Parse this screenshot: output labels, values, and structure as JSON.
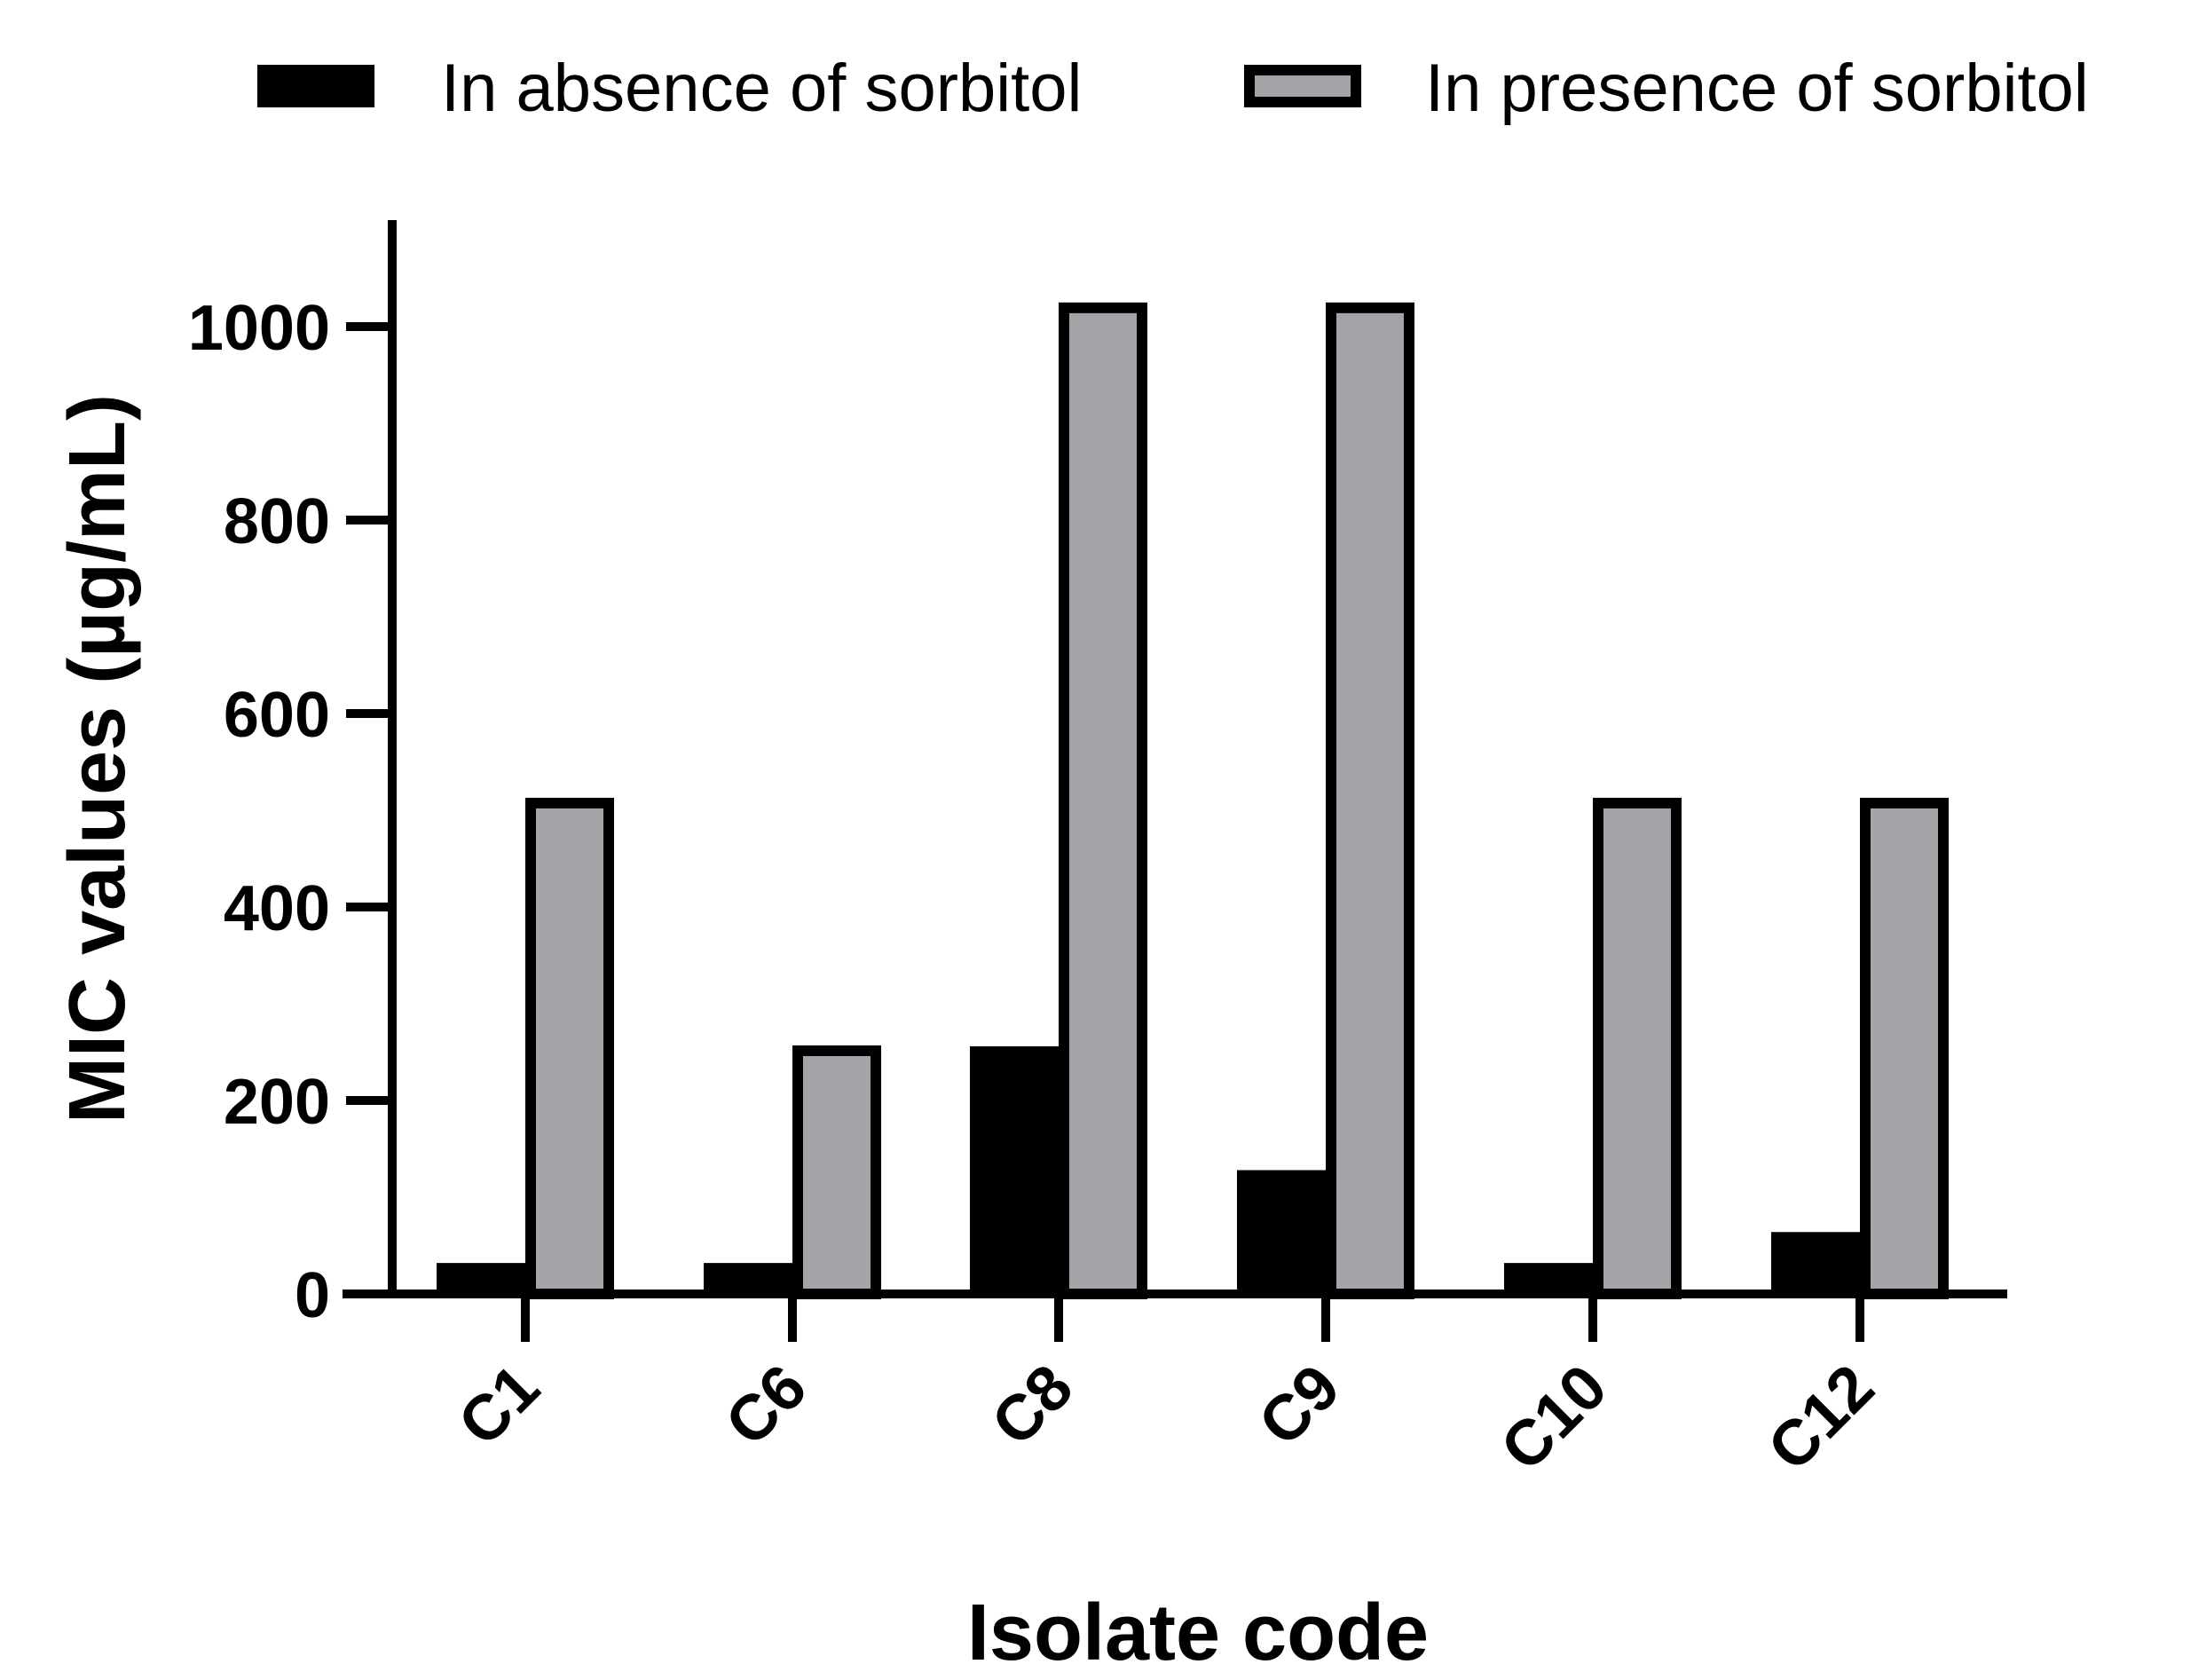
{
  "chart_data": {
    "type": "bar",
    "title": "",
    "xlabel": "Isolate code",
    "ylabel": "MIC values (µg/mL)",
    "categories": [
      "C1",
      "C6",
      "C8",
      "C9",
      "C10",
      "C12"
    ],
    "series": [
      {
        "name": "In absence of sorbitol",
        "values": [
          32,
          32,
          256,
          128,
          32,
          64
        ],
        "color": "#000000"
      },
      {
        "name": "In presence of sorbitol",
        "values": [
          512,
          256,
          1024,
          1024,
          512,
          512
        ],
        "color": "#a4a4a8"
      }
    ],
    "yticks": [
      0,
      200,
      400,
      600,
      800,
      1000
    ],
    "ylim": [
      0,
      1100
    ],
    "grid": false,
    "legend_position": "top",
    "category_label_rotation": -45
  }
}
